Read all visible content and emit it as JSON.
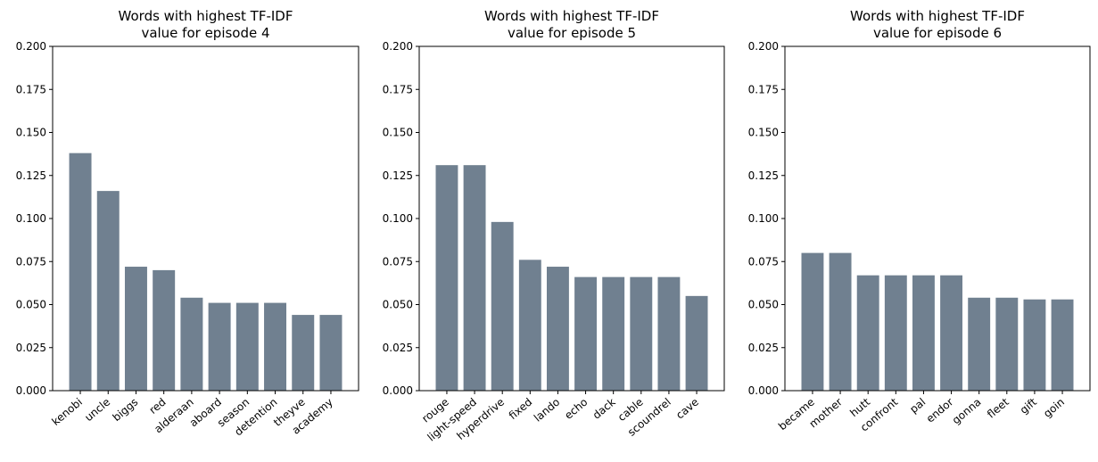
{
  "colors": {
    "bar": "#708090",
    "axis": "#000000",
    "background": "#ffffff"
  },
  "chart_data": [
    {
      "type": "bar",
      "title_lines": [
        "Words with highest TF-IDF",
        "value for episode 4"
      ],
      "xlabel": "",
      "ylabel": "",
      "ylim": [
        0,
        0.2
      ],
      "yticks": [
        "0.000",
        "0.025",
        "0.050",
        "0.075",
        "0.100",
        "0.125",
        "0.150",
        "0.175",
        "0.200"
      ],
      "categories": [
        "kenobi",
        "uncle",
        "biggs",
        "red",
        "alderaan",
        "aboard",
        "season",
        "detention",
        "theyve",
        "academy"
      ],
      "values": [
        0.138,
        0.116,
        0.072,
        0.07,
        0.054,
        0.051,
        0.051,
        0.051,
        0.044,
        0.044
      ],
      "grid": false
    },
    {
      "type": "bar",
      "title_lines": [
        "Words with highest TF-IDF",
        "value for episode 5"
      ],
      "xlabel": "",
      "ylabel": "",
      "ylim": [
        0,
        0.2
      ],
      "yticks": [
        "0.000",
        "0.025",
        "0.050",
        "0.075",
        "0.100",
        "0.125",
        "0.150",
        "0.175",
        "0.200"
      ],
      "categories": [
        "rouge",
        "light-speed",
        "hyperdrive",
        "fixed",
        "lando",
        "echo",
        "dack",
        "cable",
        "scoundrel",
        "cave"
      ],
      "values": [
        0.131,
        0.131,
        0.098,
        0.076,
        0.072,
        0.066,
        0.066,
        0.066,
        0.066,
        0.055
      ],
      "grid": false
    },
    {
      "type": "bar",
      "title_lines": [
        "Words with highest TF-IDF",
        "value for episode 6"
      ],
      "xlabel": "",
      "ylabel": "",
      "ylim": [
        0,
        0.2
      ],
      "yticks": [
        "0.000",
        "0.025",
        "0.050",
        "0.075",
        "0.100",
        "0.125",
        "0.150",
        "0.175",
        "0.200"
      ],
      "categories": [
        "became",
        "mother",
        "hutt",
        "confront",
        "pal",
        "endor",
        "gonna",
        "fleet",
        "gift",
        "goin"
      ],
      "values": [
        0.08,
        0.08,
        0.067,
        0.067,
        0.067,
        0.067,
        0.054,
        0.054,
        0.053,
        0.053
      ],
      "grid": false
    }
  ]
}
